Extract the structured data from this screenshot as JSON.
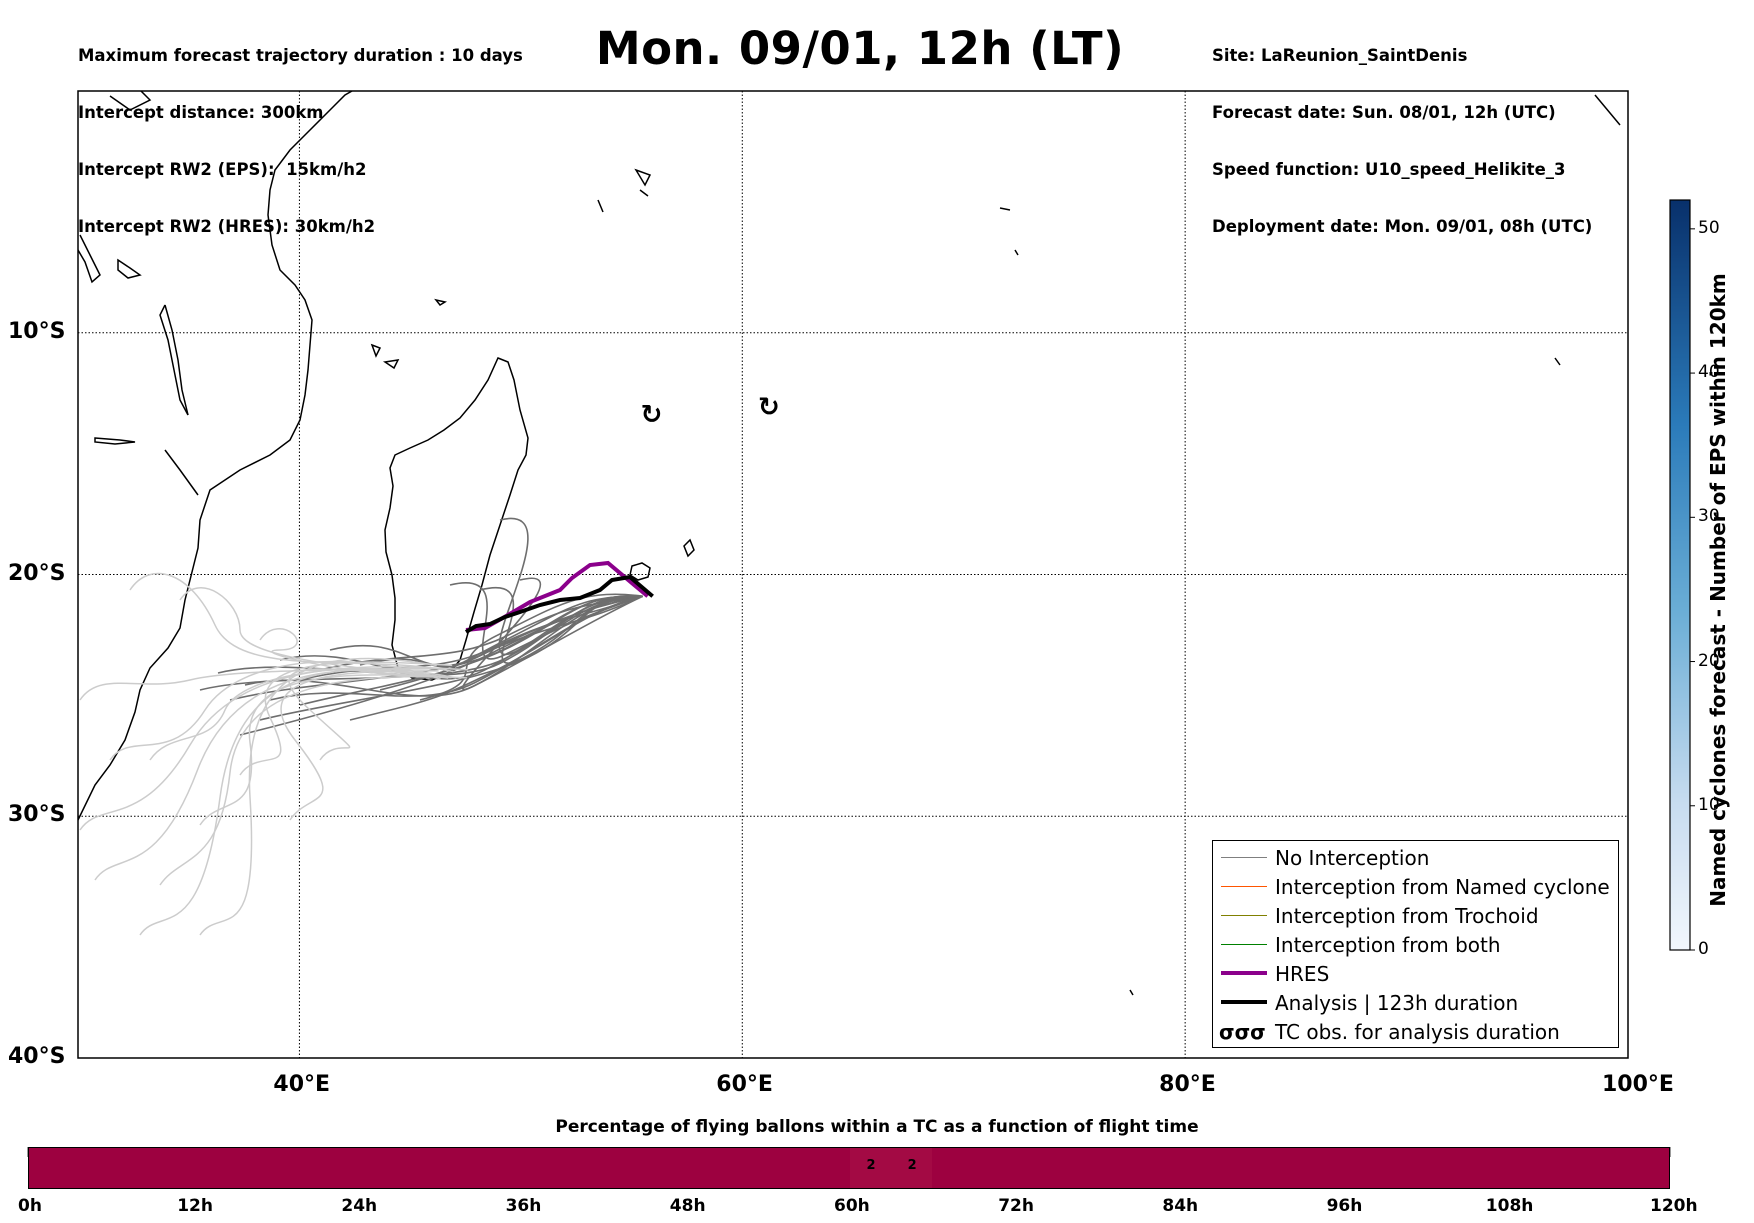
{
  "header_left": [
    "Maximum forecast trajectory duration : 10 days",
    "Intercept distance: 300km",
    "Intercept RW2 (EPS):  15km/h2",
    "Intercept RW2 (HRES): 30km/h2"
  ],
  "header_right": [
    "Site: LaReunion_SaintDenis",
    "Forecast date: Sun. 08/01, 12h (UTC)",
    "Speed function: U10_speed_Helikite_3",
    "Deployment date: Mon. 09/01, 08h (UTC)"
  ],
  "title": "Mon. 09/01, 12h (LT)",
  "map": {
    "lon_range": [
      30,
      100
    ],
    "lat_range": [
      -40,
      0
    ],
    "lon_ticks": [
      "40°E",
      "60°E",
      "80°E",
      "100°E"
    ],
    "lat_ticks": [
      "10°S",
      "20°S",
      "30°S",
      "40°S"
    ],
    "grid": true,
    "site": {
      "lon": 55.5,
      "lat": -20.9
    },
    "tc_obs": [
      {
        "lon": 55.9,
        "lat": -13.4
      },
      {
        "lon": 61.2,
        "lat": -13.1
      }
    ]
  },
  "colorbar": {
    "label": "Named cyclones forecast - Number of EPS within 120km",
    "ticks": [
      "0",
      "10",
      "20",
      "30",
      "40",
      "50"
    ],
    "range": [
      0,
      52
    ]
  },
  "legend": {
    "items": [
      {
        "label": "No Interception",
        "color": "#7f7f7f",
        "width": 1.5
      },
      {
        "label": "Interception from Named cyclone",
        "color": "#ff5500",
        "width": 1.5
      },
      {
        "label": "Interception from Trochoid",
        "color": "#808000",
        "width": 1.5
      },
      {
        "label": "Interception from both",
        "color": "#008000",
        "width": 1.5
      },
      {
        "label": "HRES",
        "color": "#8b008b",
        "width": 4
      },
      {
        "label": "Analysis | 123h duration",
        "color": "#000000",
        "width": 4
      },
      {
        "label": "TC obs. for analysis duration",
        "symbol": "σσσ"
      }
    ]
  },
  "pct_bar": {
    "title": "Percentage of flying ballons within a TC as a function of flight time",
    "ticks": [
      "0h",
      "12h",
      "24h",
      "36h",
      "48h",
      "60h",
      "72h",
      "84h",
      "96h",
      "108h",
      "120h"
    ],
    "range_hours": [
      0,
      120
    ],
    "cells": [
      {
        "hour_start": 60,
        "hour_end": 63,
        "value": "2"
      },
      {
        "hour_start": 63,
        "hour_end": 66,
        "value": "2"
      }
    ]
  },
  "colors": {
    "land_outline": "#000000",
    "eps_tracks_dark": "#6e6e6e",
    "eps_tracks_light": "#cccccc",
    "hres": "#8b008b",
    "analysis": "#000000",
    "pct_fill": "#9d0140"
  }
}
